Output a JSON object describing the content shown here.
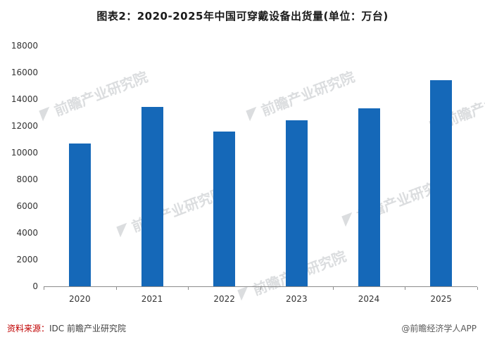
{
  "chart_data": {
    "type": "bar",
    "title": "图表2：2020-2025年中国可穿戴设备出货量(单位：万台)",
    "categories": [
      "2020",
      "2021",
      "2022",
      "2023",
      "2024",
      "2025"
    ],
    "values": [
      10700,
      13400,
      11600,
      12400,
      13300,
      15400
    ],
    "xlabel": "",
    "ylabel": "",
    "ylim": [
      0,
      18000
    ],
    "yticks": [
      0,
      2000,
      4000,
      6000,
      8000,
      10000,
      12000,
      14000,
      16000,
      18000
    ],
    "grid": false,
    "legend": "none",
    "bar_color": "#1568b8"
  },
  "watermark": {
    "text": "前瞻产业研究院"
  },
  "footer": {
    "source_prefix": "资料来源：",
    "source_text": "IDC 前瞻产业研究院",
    "credit": "@前瞻经济学人APP"
  }
}
